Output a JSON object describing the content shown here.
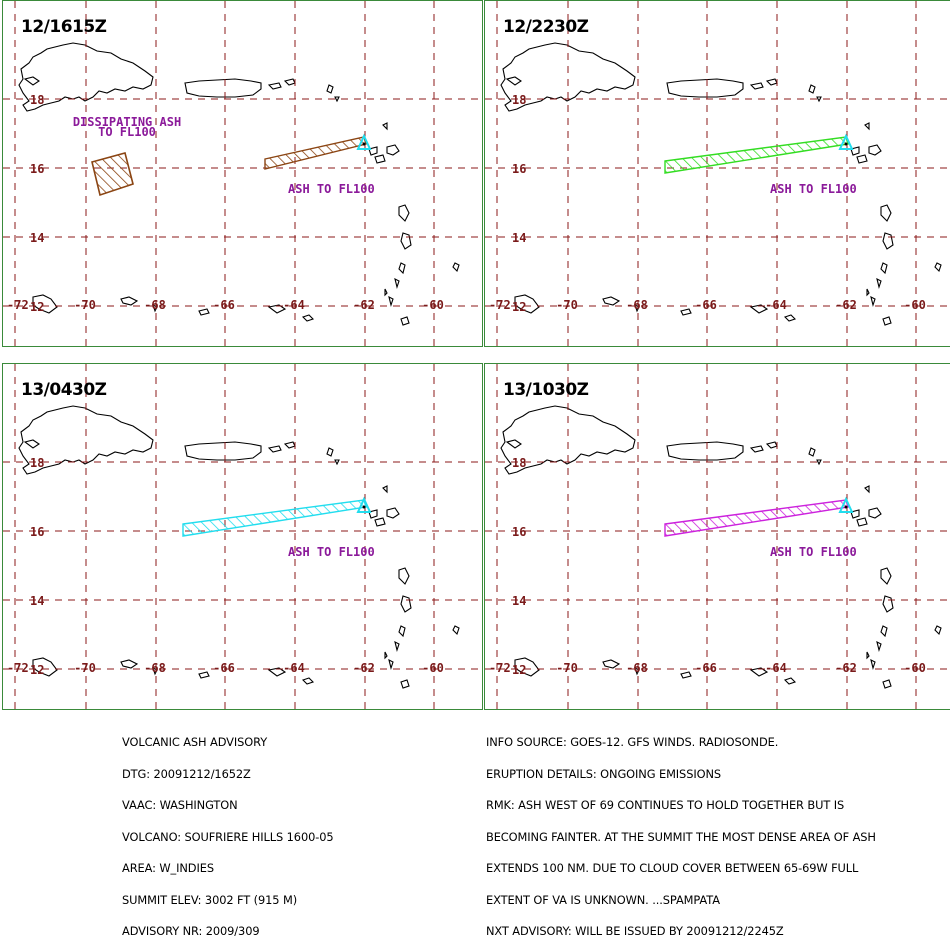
{
  "panels": [
    {
      "time": "12/1615Z",
      "ash_color": "#8b4513",
      "annotations": {
        "main": "ASH TO FL100",
        "dissipating_line1": "DISSIPATING ASH",
        "dissipating_line2": "TO FL100"
      }
    },
    {
      "time": "12/2230Z",
      "ash_color": "#33dd22",
      "annotations": {
        "main": "ASH TO FL100"
      }
    },
    {
      "time": "13/0430Z",
      "ash_color": "#22ddee",
      "annotations": {
        "main": "ASH TO FL100"
      }
    },
    {
      "time": "13/1030Z",
      "ash_color": "#cc22dd",
      "annotations": {
        "main": "ASH TO FL100"
      }
    }
  ],
  "grid": {
    "lat_labels": [
      "18",
      "16",
      "14",
      "12"
    ],
    "lon_labels": [
      "-72",
      "-70",
      "-68",
      "-66",
      "-64",
      "-62",
      "-60"
    ],
    "line_color": "#8b1a1a"
  },
  "volcano_marker_color": "#22ddee",
  "advisory_left": [
    "VOLCANIC ASH ADVISORY",
    "DTG: 20091212/1652Z",
    "VAAC: WASHINGTON",
    "VOLCANO: SOUFRIERE HILLS 1600-05",
    "AREA: W_INDIES",
    "SUMMIT ELEV: 3002 FT (915 M)",
    "ADVISORY NR: 2009/309"
  ],
  "advisory_right": [
    "INFO SOURCE: GOES-12. GFS WINDS. RADIOSONDE.",
    "ERUPTION DETAILS: ONGOING EMISSIONS",
    "RMK: ASH WEST OF 69 CONTINUES TO HOLD TOGETHER BUT IS",
    "BECOMING FAINTER. AT THE SUMMIT THE MOST DENSE AREA OF ASH",
    "EXTENDS 100 NM. DUE TO CLOUD COVER BETWEEN 65-69W FULL",
    "EXTENT OF VA IS UNKNOWN. ...SPAMPATA",
    "NXT ADVISORY: WILL BE ISSUED BY 20091212/2245Z"
  ]
}
